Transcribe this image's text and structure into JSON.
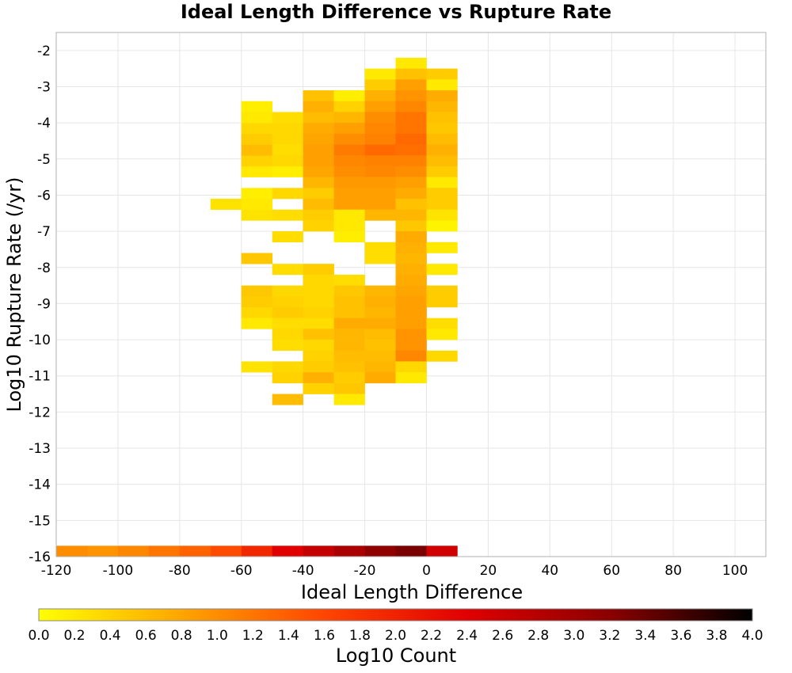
{
  "chart_data": {
    "type": "heatmap",
    "title": "Ideal Length Difference vs Rupture Rate",
    "xlabel": "Ideal Length Difference",
    "ylabel": "Log10 Rupture Rate (/yr)",
    "colorbar_label": "Log10 Count",
    "xlim": [
      -120,
      110
    ],
    "ylim": [
      -16,
      -1.5
    ],
    "x_ticks": [
      "-120",
      "-100",
      "-80",
      "-60",
      "-40",
      "-20",
      "0",
      "20",
      "40",
      "60",
      "80",
      "100"
    ],
    "y_ticks": [
      "-2",
      "-3",
      "-4",
      "-5",
      "-6",
      "-7",
      "-8",
      "-9",
      "-10",
      "-11",
      "-12",
      "-13",
      "-14",
      "-15",
      "-16"
    ],
    "colorbar_ticks": [
      "0.0",
      "0.2",
      "0.4",
      "0.6",
      "0.8",
      "1.0",
      "1.2",
      "1.4",
      "1.6",
      "1.8",
      "2.0",
      "2.2",
      "2.4",
      "2.6",
      "2.8",
      "3.0",
      "3.2",
      "3.4",
      "3.6",
      "3.8",
      "4.0"
    ],
    "colorbar_range": [
      0,
      4
    ],
    "colormap": [
      "#ffff00",
      "#ffa500",
      "#ff4500",
      "#e00000",
      "#8b0000",
      "#000000"
    ],
    "grid": true,
    "bin_width_x": 10,
    "bin_height_y": 0.3,
    "cell_columns": [
      "x_start",
      "y_start",
      "log10_count"
    ],
    "cells": [
      [
        -60,
        -6.4,
        0.25
      ],
      [
        -60,
        -5.5,
        0.2
      ],
      [
        -60,
        -5.2,
        0.4
      ],
      [
        -60,
        -4.9,
        0.6
      ],
      [
        -60,
        -4.6,
        0.45
      ],
      [
        -60,
        -4.3,
        0.35
      ],
      [
        -60,
        -4.0,
        0.2
      ],
      [
        -60,
        -3.7,
        0.15
      ],
      [
        -60,
        -6.1,
        0.15
      ],
      [
        -60,
        -6.4,
        0.2
      ],
      [
        -60,
        -6.7,
        0.25
      ],
      [
        -60,
        -7.9,
        0.5
      ],
      [
        -60,
        -8.8,
        0.5
      ],
      [
        -60,
        -9.1,
        0.45
      ],
      [
        -60,
        -9.4,
        0.35
      ],
      [
        -60,
        -9.7,
        0.2
      ],
      [
        -60,
        -10.9,
        0.25
      ],
      [
        -70,
        -6.4,
        0.25
      ],
      [
        -50,
        -5.5,
        0.15
      ],
      [
        -50,
        -5.2,
        0.35
      ],
      [
        -50,
        -4.9,
        0.3
      ],
      [
        -50,
        -4.6,
        0.35
      ],
      [
        -50,
        -4.3,
        0.35
      ],
      [
        -50,
        -4.0,
        0.3
      ],
      [
        -50,
        -6.1,
        0.35
      ],
      [
        -50,
        -6.7,
        0.3
      ],
      [
        -50,
        -7.3,
        0.3
      ],
      [
        -50,
        -8.2,
        0.3
      ],
      [
        -50,
        -8.8,
        0.35
      ],
      [
        -50,
        -9.1,
        0.4
      ],
      [
        -50,
        -9.4,
        0.45
      ],
      [
        -50,
        -9.7,
        0.3
      ],
      [
        -50,
        -10.0,
        0.35
      ],
      [
        -50,
        -10.3,
        0.3
      ],
      [
        -50,
        -10.9,
        0.35
      ],
      [
        -50,
        -11.2,
        0.4
      ],
      [
        -50,
        -11.8,
        0.6
      ],
      [
        -40,
        -3.4,
        0.55
      ],
      [
        -40,
        -3.7,
        0.7
      ],
      [
        -40,
        -4.0,
        0.6
      ],
      [
        -40,
        -4.3,
        0.75
      ],
      [
        -40,
        -4.6,
        0.8
      ],
      [
        -40,
        -4.9,
        0.85
      ],
      [
        -40,
        -5.2,
        0.85
      ],
      [
        -40,
        -5.5,
        0.8
      ],
      [
        -40,
        -5.8,
        0.65
      ],
      [
        -40,
        -6.1,
        0.45
      ],
      [
        -40,
        -6.4,
        0.6
      ],
      [
        -40,
        -6.7,
        0.45
      ],
      [
        -40,
        -7.0,
        0.4
      ],
      [
        -40,
        -8.2,
        0.45
      ],
      [
        -40,
        -8.5,
        0.35
      ],
      [
        -40,
        -8.8,
        0.35
      ],
      [
        -40,
        -9.1,
        0.35
      ],
      [
        -40,
        -9.4,
        0.4
      ],
      [
        -40,
        -9.7,
        0.3
      ],
      [
        -40,
        -10.0,
        0.55
      ],
      [
        -40,
        -10.3,
        0.35
      ],
      [
        -40,
        -10.6,
        0.4
      ],
      [
        -40,
        -10.9,
        0.45
      ],
      [
        -40,
        -11.2,
        0.7
      ],
      [
        -40,
        -11.5,
        0.4
      ],
      [
        -30,
        -3.4,
        0.15
      ],
      [
        -30,
        -3.7,
        0.4
      ],
      [
        -30,
        -4.0,
        0.65
      ],
      [
        -30,
        -4.3,
        0.85
      ],
      [
        -30,
        -4.6,
        1.0
      ],
      [
        -30,
        -4.9,
        1.15
      ],
      [
        -30,
        -5.2,
        1.05
      ],
      [
        -30,
        -5.5,
        1.0
      ],
      [
        -30,
        -5.8,
        0.9
      ],
      [
        -30,
        -6.1,
        0.85
      ],
      [
        -30,
        -6.4,
        0.85
      ],
      [
        -30,
        -6.7,
        0.2
      ],
      [
        -30,
        -7.0,
        0.2
      ],
      [
        -30,
        -7.3,
        0.15
      ],
      [
        -30,
        -8.5,
        0.3
      ],
      [
        -30,
        -8.8,
        0.5
      ],
      [
        -30,
        -9.1,
        0.55
      ],
      [
        -30,
        -9.4,
        0.55
      ],
      [
        -30,
        -9.7,
        0.75
      ],
      [
        -30,
        -10.0,
        0.65
      ],
      [
        -30,
        -10.3,
        0.65
      ],
      [
        -30,
        -10.6,
        0.6
      ],
      [
        -30,
        -10.9,
        0.55
      ],
      [
        -30,
        -11.2,
        0.45
      ],
      [
        -30,
        -11.5,
        0.5
      ],
      [
        -30,
        -11.8,
        0.2
      ],
      [
        -20,
        -2.8,
        0.2
      ],
      [
        -20,
        -3.1,
        0.45
      ],
      [
        -20,
        -3.4,
        0.7
      ],
      [
        -20,
        -3.7,
        0.85
      ],
      [
        -20,
        -4.0,
        1.0
      ],
      [
        -20,
        -4.3,
        1.05
      ],
      [
        -20,
        -4.6,
        1.1
      ],
      [
        -20,
        -4.9,
        1.3
      ],
      [
        -20,
        -5.2,
        1.1
      ],
      [
        -20,
        -5.5,
        1.05
      ],
      [
        -20,
        -5.8,
        0.9
      ],
      [
        -20,
        -6.1,
        0.85
      ],
      [
        -20,
        -6.4,
        0.85
      ],
      [
        -20,
        -6.7,
        0.65
      ],
      [
        -20,
        -7.6,
        0.3
      ],
      [
        -20,
        -7.9,
        0.3
      ],
      [
        -20,
        -8.8,
        0.65
      ],
      [
        -20,
        -9.1,
        0.7
      ],
      [
        -20,
        -9.4,
        0.65
      ],
      [
        -20,
        -9.7,
        0.75
      ],
      [
        -20,
        -10.0,
        0.6
      ],
      [
        -20,
        -10.3,
        0.55
      ],
      [
        -20,
        -10.6,
        0.6
      ],
      [
        -20,
        -10.9,
        0.65
      ],
      [
        -20,
        -11.2,
        0.75
      ],
      [
        -10,
        -2.5,
        0.2
      ],
      [
        -10,
        -2.8,
        0.55
      ],
      [
        -10,
        -3.1,
        0.85
      ],
      [
        -10,
        -3.4,
        0.95
      ],
      [
        -10,
        -3.7,
        1.05
      ],
      [
        -10,
        -4.0,
        1.2
      ],
      [
        -10,
        -4.3,
        1.2
      ],
      [
        -10,
        -4.6,
        1.3
      ],
      [
        -10,
        -4.9,
        1.25
      ],
      [
        -10,
        -5.2,
        1.1
      ],
      [
        -10,
        -5.5,
        1.0
      ],
      [
        -10,
        -5.8,
        0.85
      ],
      [
        -10,
        -6.1,
        0.75
      ],
      [
        -10,
        -6.4,
        0.55
      ],
      [
        -10,
        -6.7,
        0.65
      ],
      [
        -10,
        -7.0,
        0.5
      ],
      [
        -10,
        -7.3,
        0.75
      ],
      [
        -10,
        -7.6,
        0.7
      ],
      [
        -10,
        -7.9,
        0.65
      ],
      [
        -10,
        -8.2,
        0.7
      ],
      [
        -10,
        -8.5,
        0.75
      ],
      [
        -10,
        -8.8,
        0.8
      ],
      [
        -10,
        -9.1,
        0.85
      ],
      [
        -10,
        -9.4,
        0.85
      ],
      [
        -10,
        -9.7,
        0.85
      ],
      [
        -10,
        -10.0,
        0.95
      ],
      [
        -10,
        -10.3,
        0.95
      ],
      [
        -10,
        -10.6,
        1.05
      ],
      [
        -10,
        -10.9,
        0.35
      ],
      [
        -10,
        -11.2,
        0.2
      ],
      [
        0,
        -2.8,
        0.45
      ],
      [
        0,
        -3.1,
        0.2
      ],
      [
        0,
        -3.4,
        0.75
      ],
      [
        0,
        -3.7,
        0.65
      ],
      [
        0,
        -4.0,
        0.55
      ],
      [
        0,
        -4.3,
        0.5
      ],
      [
        0,
        -4.6,
        0.6
      ],
      [
        0,
        -4.9,
        0.7
      ],
      [
        0,
        -5.2,
        0.6
      ],
      [
        0,
        -5.5,
        0.45
      ],
      [
        0,
        -5.8,
        0.2
      ],
      [
        0,
        -6.1,
        0.45
      ],
      [
        0,
        -6.4,
        0.45
      ],
      [
        0,
        -6.7,
        0.25
      ],
      [
        0,
        -7.0,
        0.1
      ],
      [
        0,
        -7.6,
        0.2
      ],
      [
        0,
        -8.2,
        0.2
      ],
      [
        0,
        -8.8,
        0.45
      ],
      [
        0,
        -9.1,
        0.45
      ],
      [
        0,
        -9.7,
        0.3
      ],
      [
        0,
        -10.0,
        0.2
      ],
      [
        0,
        -10.6,
        0.35
      ],
      [
        -120,
        -16,
        1.0
      ],
      [
        -110,
        -16,
        0.95
      ],
      [
        -100,
        -16,
        1.05
      ],
      [
        -90,
        -16,
        1.2
      ],
      [
        -80,
        -16,
        1.35
      ],
      [
        -70,
        -16,
        1.55
      ],
      [
        -60,
        -16,
        1.95
      ],
      [
        -50,
        -16,
        2.4
      ],
      [
        -40,
        -16,
        2.65
      ],
      [
        -30,
        -16,
        2.9
      ],
      [
        -20,
        -16,
        3.15
      ],
      [
        -10,
        -16,
        3.3
      ],
      [
        0,
        -16,
        2.55
      ]
    ]
  }
}
